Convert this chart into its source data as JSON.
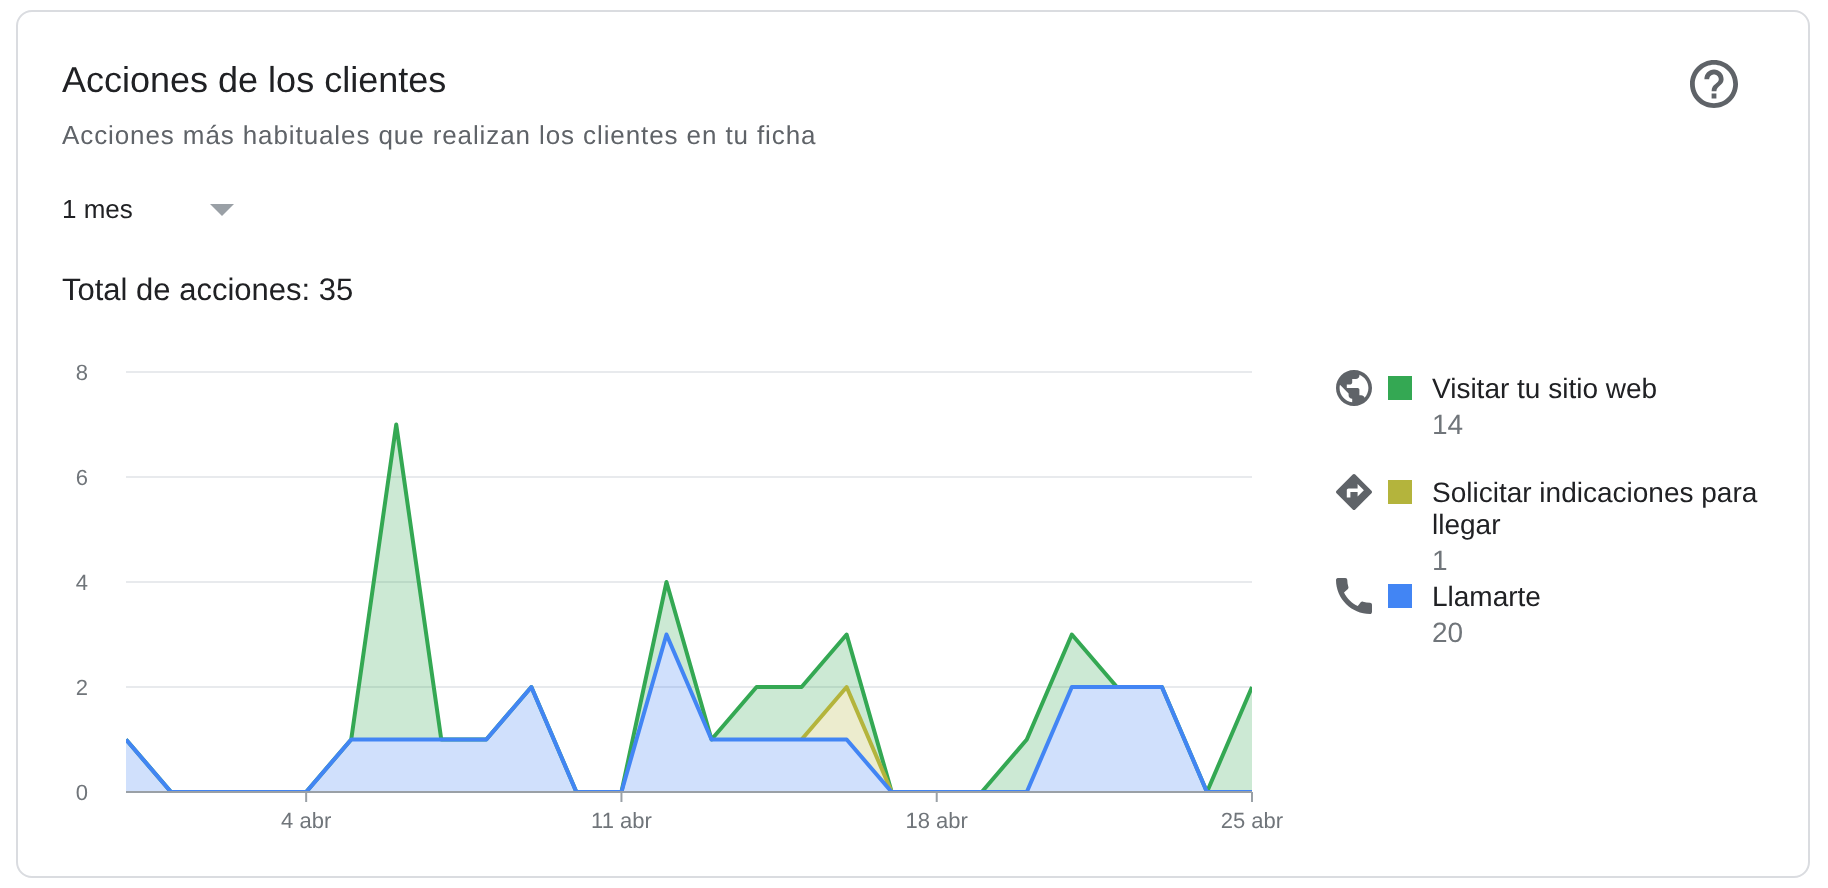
{
  "chart_data": {
    "type": "area",
    "title": "Acciones de los clientes",
    "subtitle": "Acciones más habituales que realizan los clientes en tu ficha",
    "x": [
      "--03-31",
      "--04-01",
      "--04-02",
      "--04-03",
      "--04-04",
      "--04-05",
      "--04-06",
      "--04-07",
      "--04-08",
      "--04-09",
      "--04-10",
      "--04-11",
      "--04-12",
      "--04-13",
      "--04-14",
      "--04-15",
      "--04-16",
      "--04-17",
      "--04-18",
      "--04-19",
      "--04-20",
      "--04-21",
      "--04-22",
      "--04-23",
      "--04-24",
      "--04-25"
    ],
    "series": [
      {
        "name": "Llamarte",
        "color": "#4285f4",
        "values": [
          1,
          0,
          0,
          0,
          0,
          1,
          1,
          1,
          1,
          2,
          0,
          0,
          3,
          1,
          1,
          1,
          1,
          0,
          0,
          0,
          0,
          2,
          2,
          2,
          0,
          0
        ]
      },
      {
        "name": "Solicitar indicaciones para llegar",
        "color": "#b4b43c",
        "values": [
          null,
          null,
          null,
          null,
          null,
          null,
          null,
          null,
          null,
          null,
          null,
          null,
          null,
          null,
          null,
          0,
          1,
          0,
          null,
          null,
          null,
          null,
          null,
          null,
          null,
          null
        ]
      },
      {
        "name": "Visitar tu sitio web",
        "color": "#34a853",
        "values": [
          0,
          0,
          0,
          0,
          0,
          0,
          6,
          0,
          0,
          0,
          0,
          0,
          1,
          0,
          1,
          1,
          1,
          0,
          0,
          0,
          1,
          1,
          0,
          0,
          0,
          2
        ]
      }
    ],
    "stacked": true,
    "xlim": [
      "--03-31",
      "--04-25"
    ],
    "xticks": [
      {
        "value": "--04-04",
        "label": "4 abr"
      },
      {
        "value": "--04-11",
        "label": "11 abr"
      },
      {
        "value": "--04-18",
        "label": "18 abr"
      },
      {
        "value": "--04-25",
        "label": "25 abr"
      }
    ],
    "ylim": [
      0,
      8
    ],
    "yticks": [
      0,
      2,
      4,
      6,
      8
    ],
    "grid": "y",
    "legend": "right",
    "annotations": [
      "1 mes",
      "Total de acciones: 35",
      "14",
      "1",
      "20"
    ]
  }
}
